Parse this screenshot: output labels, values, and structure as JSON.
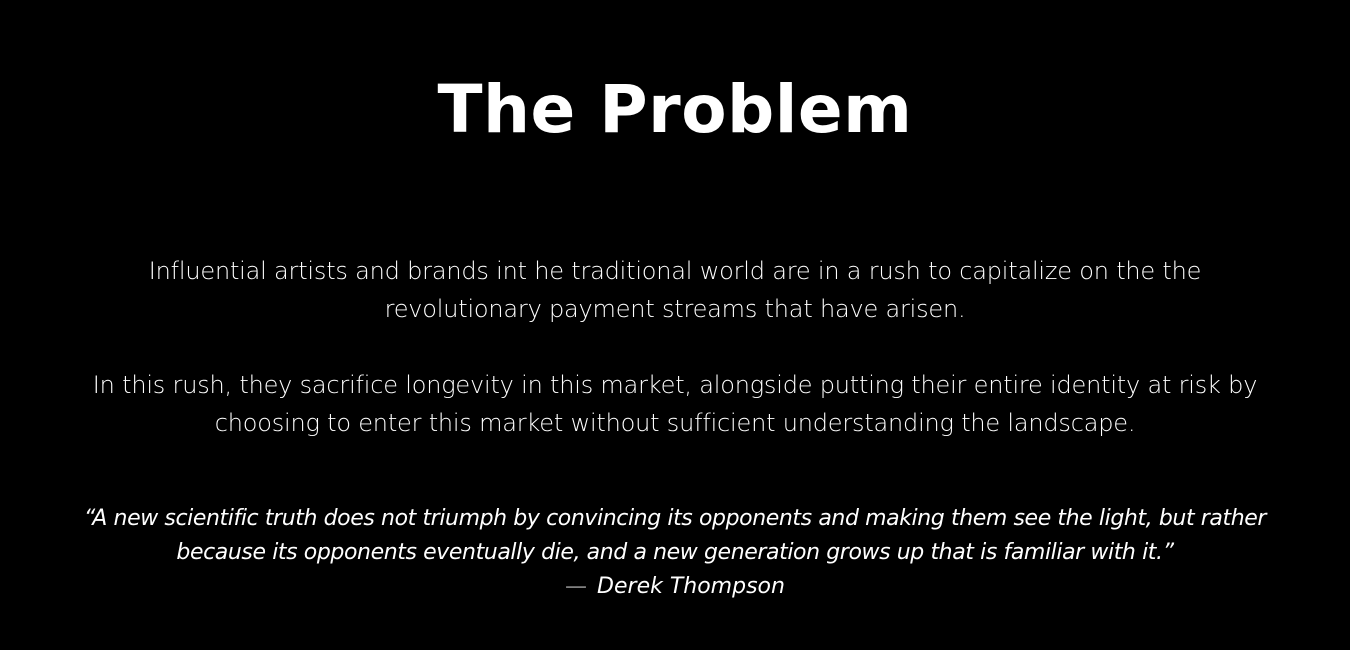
{
  "slide": {
    "title": "The Problem",
    "paragraphs": [
      "Influential artists and brands int he traditional world are in a rush to capitalize on the the revolutionary payment streams that have arisen.",
      "In this rush, they sacrifice longevity in this market, alongside putting their entire identity at risk by choosing to enter this market without sufficient understanding the landscape."
    ],
    "quote": {
      "text": "“A new scientific truth does not triumph by convincing its opponents and making them see the light, but rather because its opponents eventually die, and a new generation grows up that is familiar with it.”",
      "dash": "—",
      "author": "Derek Thompson"
    }
  },
  "colors": {
    "background": "#000000",
    "text": "#ffffff"
  }
}
